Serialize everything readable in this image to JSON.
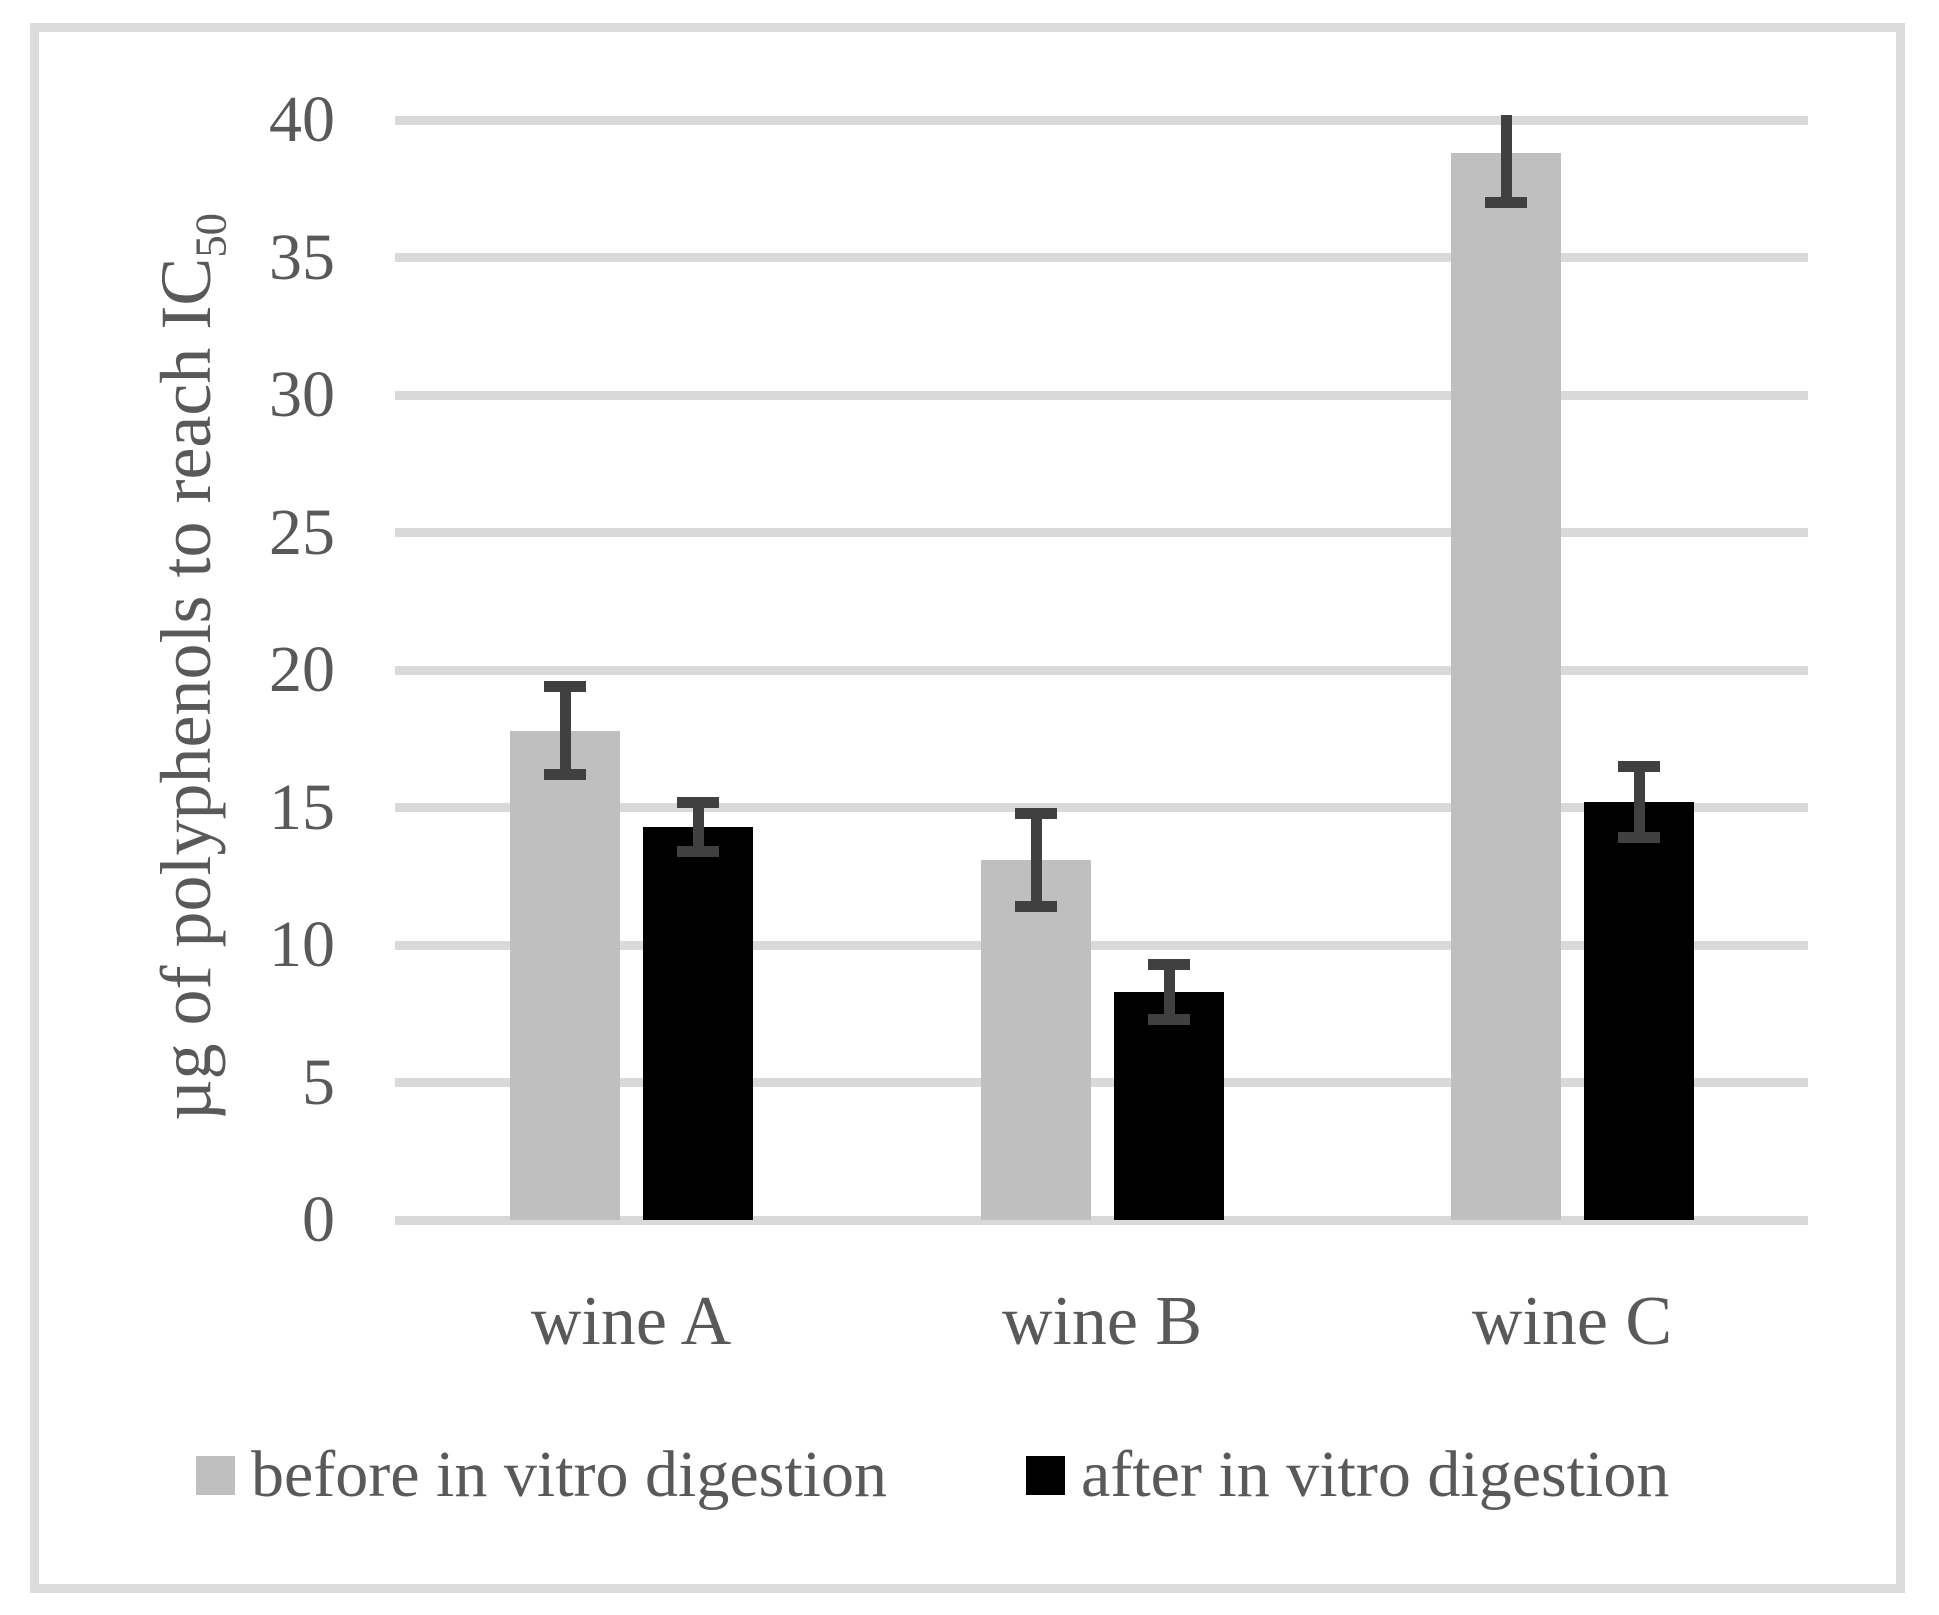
{
  "figure": {
    "background": "#ffffff",
    "border_color": "#dcdcdc"
  },
  "chart_data": {
    "type": "bar",
    "title": "",
    "categories": [
      "wine A",
      "wine B",
      "wine C"
    ],
    "series": [
      {
        "name": "before in vitro digestion",
        "color": "#bfbfbf",
        "values": [
          17.8,
          13.1,
          38.8
        ],
        "errors": [
          1.6,
          1.7,
          1.8
        ]
      },
      {
        "name": "after in vitro digestion",
        "color": "#000000",
        "values": [
          14.3,
          8.3,
          15.2
        ],
        "errors": [
          0.9,
          1.0,
          1.3
        ]
      }
    ],
    "xlabel": "",
    "ylabel": {
      "main": "µg of polyphenols to reach IC",
      "sub": "50"
    },
    "ylim": [
      0,
      40
    ],
    "yticks": [
      0,
      5,
      10,
      15,
      20,
      25,
      30,
      35,
      40
    ],
    "grid": true,
    "gridline_color": "#d9d9d9",
    "error_bar_color": "#404040",
    "text_color": "#595959",
    "legend_position": "bottom"
  }
}
